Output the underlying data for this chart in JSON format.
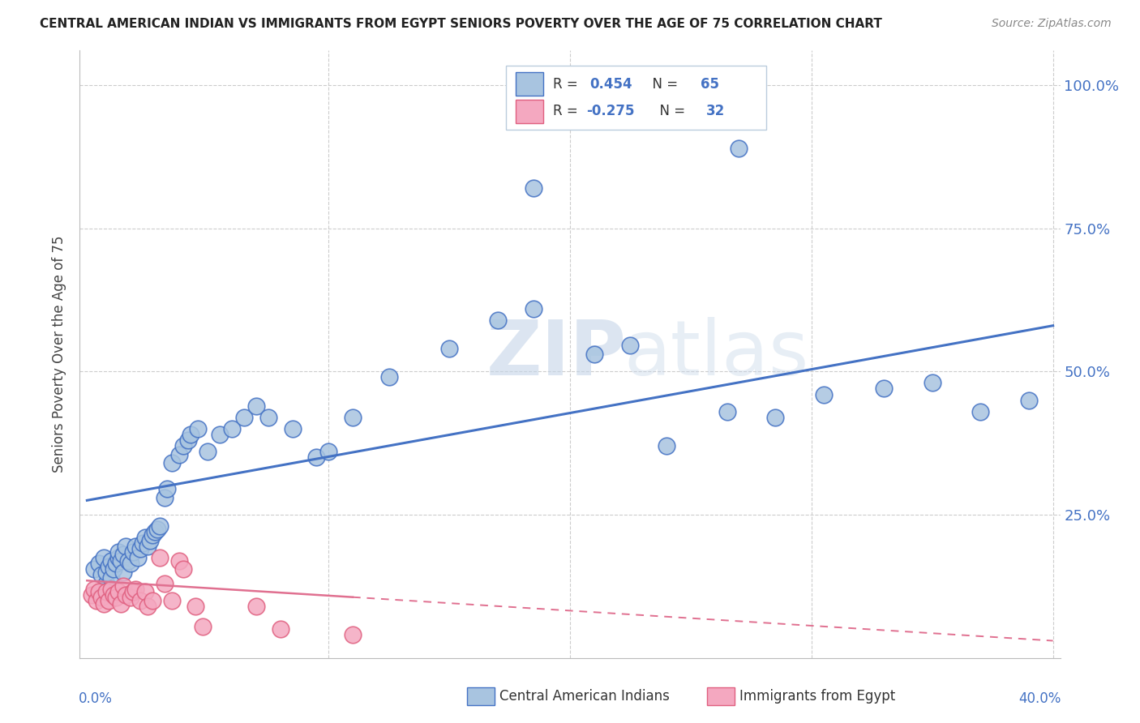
{
  "title": "CENTRAL AMERICAN INDIAN VS IMMIGRANTS FROM EGYPT SENIORS POVERTY OVER THE AGE OF 75 CORRELATION CHART",
  "source": "Source: ZipAtlas.com",
  "ylabel": "Seniors Poverty Over the Age of 75",
  "watermark_zip": "ZIP",
  "watermark_atlas": "atlas",
  "blue_color": "#A8C4E0",
  "blue_edge": "#4472C4",
  "pink_color": "#F4A8C0",
  "pink_edge": "#E06080",
  "line_blue": "#4472C4",
  "line_pink": "#E07090",
  "axis_label_color": "#4472C4",
  "text_color": "#333333",
  "grid_color": "#CCCCCC",
  "legend_text_color": "#333333",
  "legend_num_color": "#4472C4",
  "xlim": [
    0.0,
    0.4
  ],
  "ylim": [
    0.0,
    1.05
  ],
  "blue_x": [
    0.003,
    0.005,
    0.006,
    0.007,
    0.008,
    0.008,
    0.009,
    0.01,
    0.01,
    0.011,
    0.012,
    0.013,
    0.013,
    0.014,
    0.015,
    0.015,
    0.016,
    0.017,
    0.018,
    0.019,
    0.02,
    0.021,
    0.022,
    0.023,
    0.024,
    0.025,
    0.026,
    0.027,
    0.028,
    0.029,
    0.03,
    0.032,
    0.033,
    0.035,
    0.038,
    0.04,
    0.042,
    0.043,
    0.046,
    0.05,
    0.055,
    0.06,
    0.065,
    0.07,
    0.075,
    0.085,
    0.095,
    0.1,
    0.11,
    0.125,
    0.15,
    0.17,
    0.185,
    0.21,
    0.225,
    0.24,
    0.265,
    0.285,
    0.305,
    0.33,
    0.35,
    0.37,
    0.39,
    0.185,
    0.27
  ],
  "blue_y": [
    0.155,
    0.165,
    0.145,
    0.175,
    0.13,
    0.15,
    0.16,
    0.14,
    0.17,
    0.155,
    0.165,
    0.175,
    0.185,
    0.17,
    0.18,
    0.15,
    0.195,
    0.17,
    0.165,
    0.185,
    0.195,
    0.175,
    0.19,
    0.2,
    0.21,
    0.195,
    0.205,
    0.215,
    0.22,
    0.225,
    0.23,
    0.28,
    0.295,
    0.34,
    0.355,
    0.37,
    0.38,
    0.39,
    0.4,
    0.36,
    0.39,
    0.4,
    0.42,
    0.44,
    0.42,
    0.4,
    0.35,
    0.36,
    0.42,
    0.49,
    0.54,
    0.59,
    0.61,
    0.53,
    0.545,
    0.37,
    0.43,
    0.42,
    0.46,
    0.47,
    0.48,
    0.43,
    0.45,
    0.82,
    0.89
  ],
  "pink_x": [
    0.002,
    0.003,
    0.004,
    0.005,
    0.006,
    0.007,
    0.008,
    0.009,
    0.01,
    0.011,
    0.012,
    0.013,
    0.014,
    0.015,
    0.016,
    0.018,
    0.019,
    0.02,
    0.022,
    0.024,
    0.025,
    0.027,
    0.03,
    0.032,
    0.035,
    0.038,
    0.04,
    0.045,
    0.048,
    0.07,
    0.08,
    0.11
  ],
  "pink_y": [
    0.11,
    0.12,
    0.1,
    0.115,
    0.105,
    0.095,
    0.115,
    0.1,
    0.12,
    0.11,
    0.105,
    0.115,
    0.095,
    0.125,
    0.11,
    0.105,
    0.115,
    0.12,
    0.1,
    0.115,
    0.09,
    0.1,
    0.175,
    0.13,
    0.1,
    0.17,
    0.155,
    0.09,
    0.055,
    0.09,
    0.05,
    0.04
  ]
}
